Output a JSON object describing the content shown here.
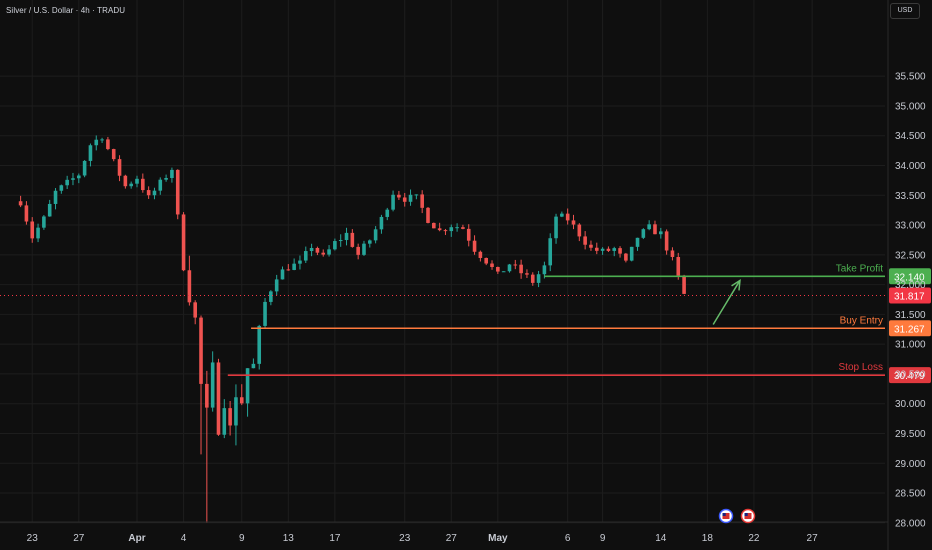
{
  "header": {
    "symbol_title": "Silver / U.S. Dollar · 4h · TRADU",
    "currency_button": "USD"
  },
  "colors": {
    "background": "#0f0f0f",
    "grid": "#1d1d1d",
    "axis_text": "#c8cbd3",
    "bullish": "#26a69a",
    "bearish": "#ef5350",
    "take_profit": "#4caf50",
    "buy_entry": "#ff7a3d",
    "stop_loss": "#e0393e",
    "last_price": "#f23645",
    "arrow": "#66bb6a"
  },
  "chart_data": {
    "type": "candlestick",
    "title": "Silver / U.S. Dollar · 4h · TRADU",
    "y_axis": {
      "min": 27.85,
      "max": 36.0,
      "ticks": [
        "35.500",
        "35.000",
        "34.500",
        "34.000",
        "33.500",
        "33.000",
        "32.500",
        "32.000",
        "31.500",
        "31.000",
        "30.500",
        "30.000",
        "29.500",
        "29.000",
        "28.500",
        "28.000"
      ],
      "tick_values": [
        35.5,
        35.0,
        34.5,
        34.0,
        33.5,
        33.0,
        32.5,
        32.0,
        31.5,
        31.0,
        30.5,
        30.0,
        29.5,
        29.0,
        28.5,
        28.0
      ]
    },
    "x_axis": {
      "ticks": [
        "23",
        "27",
        "Apr",
        "4",
        "9",
        "13",
        "17",
        "23",
        "27",
        "May",
        "6",
        "9",
        "14",
        "18",
        "22",
        "27"
      ],
      "tick_days": [
        -9,
        -5,
        0,
        4,
        9,
        13,
        17,
        23,
        27,
        31,
        37,
        40,
        45,
        49,
        53,
        58
      ],
      "tick_bold": [
        false,
        false,
        true,
        false,
        false,
        false,
        false,
        false,
        false,
        true,
        false,
        false,
        false,
        false,
        false,
        false
      ]
    },
    "levels": [
      {
        "name": "Take Profit",
        "value": 32.14,
        "price_label": "32.140",
        "start_day": 35,
        "color_key": "take_profit"
      },
      {
        "name": "Buy Entry",
        "value": 31.267,
        "price_label": "31.267",
        "start_day": 9.8,
        "color_key": "buy_entry"
      },
      {
        "name": "Stop Loss",
        "value": 30.479,
        "price_label": "30.479",
        "start_day": 7.8,
        "color_key": "stop_loss"
      }
    ],
    "last_price": {
      "value": 31.817,
      "label": "31.817"
    },
    "projection_arrow": {
      "from": {
        "day": 49.5,
        "value": 31.33
      },
      "to": {
        "day": 51.8,
        "value": 32.07
      }
    },
    "price_path": {
      "days": [
        -10,
        -9,
        -8,
        -7,
        -6,
        -5,
        -4,
        -3,
        -2,
        -1,
        0,
        1,
        2,
        3,
        4,
        5,
        5.5,
        6,
        6.5,
        7,
        7.5,
        8,
        8.5,
        9,
        9.5,
        10,
        10.5,
        11,
        12,
        13,
        14,
        15,
        16,
        17,
        18,
        19,
        20,
        21,
        22,
        23,
        24,
        25,
        26,
        27,
        28,
        29,
        30,
        31,
        32,
        33,
        34,
        35,
        36,
        37,
        38,
        39,
        40,
        41,
        42,
        43,
        44,
        45,
        46,
        47,
        48,
        49,
        50,
        51,
        52,
        53,
        54,
        55,
        56,
        57,
        58
      ],
      "values": [
        33.4,
        32.8,
        33.1,
        33.55,
        33.7,
        33.85,
        34.35,
        34.5,
        34.05,
        33.65,
        33.8,
        33.45,
        33.7,
        33.95,
        32.3,
        31.4,
        30.3,
        29.8,
        30.55,
        29.65,
        30.1,
        29.55,
        30.2,
        30.05,
        30.6,
        30.65,
        31.25,
        31.7,
        32.15,
        32.3,
        32.35,
        32.65,
        32.45,
        32.7,
        32.85,
        32.5,
        32.75,
        33.1,
        33.55,
        33.45,
        33.45,
        33.1,
        32.9,
        33.0,
        32.95,
        32.6,
        32.4,
        32.15,
        32.35,
        32.2,
        32.05,
        32.3,
        33.15,
        33.1,
        32.85,
        32.6,
        32.55,
        32.6,
        32.35,
        32.8,
        32.95,
        32.85,
        32.4,
        31.83,
        null,
        null,
        null,
        null,
        null,
        null,
        null,
        null,
        null,
        null,
        null
      ]
    }
  }
}
